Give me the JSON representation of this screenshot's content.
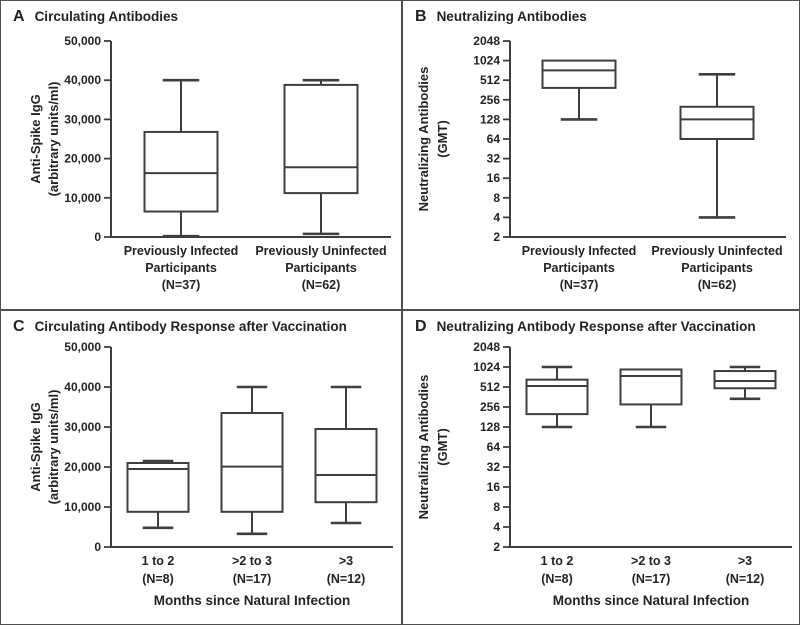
{
  "colors": {
    "line": "#3e3e3e",
    "text": "#262223",
    "background": "#ffffff",
    "divider": "#4f4f4f"
  },
  "chart_data": [
    {
      "type": "box",
      "panel": "A",
      "title": "Circulating Antibodies",
      "ylabel_lines": [
        "Anti-Spike IgG",
        "(arbitrary units/ml)"
      ],
      "yscale": "linear",
      "ylim": [
        0,
        50000
      ],
      "ytick_values": [
        0,
        10000,
        20000,
        30000,
        40000,
        50000
      ],
      "ytick_labels": [
        "0",
        "10,000",
        "20,000",
        "30,000",
        "40,000",
        "50,000"
      ],
      "xlabel": "",
      "groups": [
        {
          "label_lines": [
            "Previously Infected",
            "Participants",
            "(N=37)"
          ],
          "n": 37,
          "whisker_low": 200,
          "q1": 6500,
          "median": 16300,
          "q3": 26800,
          "whisker_high": 40000
        },
        {
          "label_lines": [
            "Previously Uninfected",
            "Participants",
            "(N=62)"
          ],
          "n": 62,
          "whisker_low": 800,
          "q1": 11200,
          "median": 17800,
          "q3": 38800,
          "whisker_high": 40000
        }
      ]
    },
    {
      "type": "box",
      "panel": "B",
      "title": "Neutralizing Antibodies",
      "ylabel_lines": [
        "Neutralizing Antibodies",
        "(GMT)"
      ],
      "yscale": "log2",
      "ylim": [
        2,
        2048
      ],
      "ytick_values": [
        2,
        4,
        8,
        16,
        32,
        64,
        128,
        256,
        512,
        1024,
        2048
      ],
      "ytick_labels": [
        "2",
        "4",
        "8",
        "16",
        "32",
        "64",
        "128",
        "256",
        "512",
        "1024",
        "2048"
      ],
      "xlabel": "",
      "groups": [
        {
          "label_lines": [
            "Previously Infected",
            "Participants",
            "(N=37)"
          ],
          "n": 37,
          "whisker_low": 128,
          "q1": 390,
          "median": 725,
          "q3": 1024,
          "whisker_high": 1024
        },
        {
          "label_lines": [
            "Previously Uninfected",
            "Participants",
            "(N=62)"
          ],
          "n": 62,
          "whisker_low": 4,
          "q1": 64,
          "median": 128,
          "q3": 200,
          "whisker_high": 630
        }
      ]
    },
    {
      "type": "box",
      "panel": "C",
      "title": "Circulating Antibody Response after Vaccination",
      "ylabel_lines": [
        "Anti-Spike IgG",
        "(arbitrary units/ml)"
      ],
      "yscale": "linear",
      "ylim": [
        0,
        50000
      ],
      "ytick_values": [
        0,
        10000,
        20000,
        30000,
        40000,
        50000
      ],
      "ytick_labels": [
        "0",
        "10,000",
        "20,000",
        "30,000",
        "40,000",
        "50,000"
      ],
      "xlabel": "Months since Natural Infection",
      "groups": [
        {
          "label_lines": [
            "1 to 2",
            "(N=8)"
          ],
          "n": 8,
          "whisker_low": 4800,
          "q1": 8800,
          "median": 19500,
          "q3": 21000,
          "whisker_high": 21500
        },
        {
          "label_lines": [
            ">2 to 3",
            "(N=17)"
          ],
          "n": 17,
          "whisker_low": 3300,
          "q1": 8800,
          "median": 20100,
          "q3": 33500,
          "whisker_high": 40000
        },
        {
          "label_lines": [
            ">3",
            "(N=12)"
          ],
          "n": 12,
          "whisker_low": 6000,
          "q1": 11200,
          "median": 18000,
          "q3": 29500,
          "whisker_high": 40000
        }
      ]
    },
    {
      "type": "box",
      "panel": "D",
      "title": "Neutralizing Antibody Response after Vaccination",
      "ylabel_lines": [
        "Neutralizing Antibodies",
        "(GMT)"
      ],
      "yscale": "log2",
      "ylim": [
        2,
        2048
      ],
      "ytick_values": [
        2,
        4,
        8,
        16,
        32,
        64,
        128,
        256,
        512,
        1024,
        2048
      ],
      "ytick_labels": [
        "2",
        "4",
        "8",
        "16",
        "32",
        "64",
        "128",
        "256",
        "512",
        "1024",
        "2048"
      ],
      "xlabel": "Months since Natural Infection",
      "groups": [
        {
          "label_lines": [
            "1 to 2",
            "(N=8)"
          ],
          "n": 8,
          "whisker_low": 128,
          "q1": 200,
          "median": 530,
          "q3": 660,
          "whisker_high": 1024
        },
        {
          "label_lines": [
            ">2 to 3",
            "(N=17)"
          ],
          "n": 17,
          "whisker_low": 128,
          "q1": 280,
          "median": 750,
          "q3": 940,
          "whisker_high": 940
        },
        {
          "label_lines": [
            ">3",
            "(N=12)"
          ],
          "n": 12,
          "whisker_low": 340,
          "q1": 490,
          "median": 630,
          "q3": 890,
          "whisker_high": 1024
        }
      ]
    }
  ]
}
